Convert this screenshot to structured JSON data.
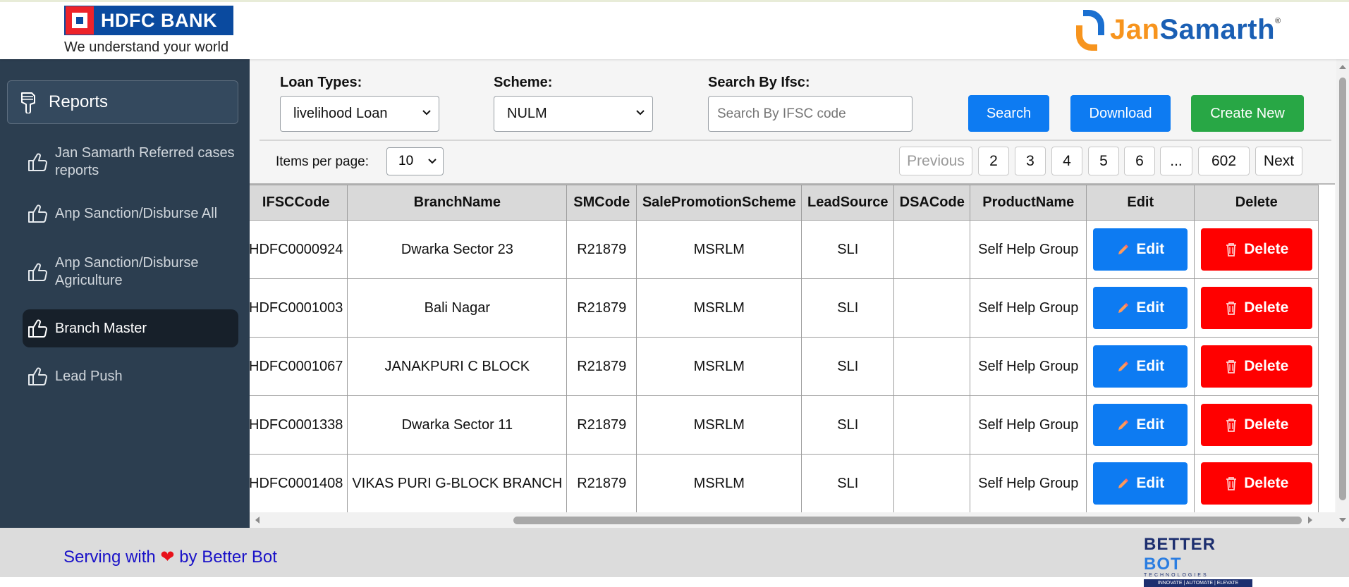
{
  "header": {
    "hdfc_name": "HDFC BANK",
    "hdfc_tagline": "We understand your world",
    "js_part1": "Jan",
    "js_part2": "Samarth",
    "js_reg": "®"
  },
  "sidebar": {
    "reports_label": "Reports",
    "items": [
      {
        "label": "Jan Samarth Referred cases reports"
      },
      {
        "label": "Anp Sanction/Disburse All"
      },
      {
        "label": "Anp Sanction/Disburse Agriculture"
      },
      {
        "label": "Branch Master"
      },
      {
        "label": "Lead Push"
      }
    ]
  },
  "filters": {
    "loan_types_label": "Loan Types:",
    "loan_types_value": "livelihood Loan",
    "scheme_label": "Scheme:",
    "scheme_value": "NULM",
    "search_label": "Search By Ifsc:",
    "search_placeholder": "Search By IFSC code",
    "search_button": "Search",
    "download_button": "Download",
    "create_button": "Create New"
  },
  "pagination": {
    "items_per_page_label": "Items per page:",
    "items_per_page_value": "10",
    "previous": "Previous",
    "pages": [
      "2",
      "3",
      "4",
      "5",
      "6",
      "...",
      "602"
    ],
    "next": "Next"
  },
  "table": {
    "columns": [
      "IFSCCode",
      "BranchName",
      "SMCode",
      "SalePromotionScheme",
      "LeadSource",
      "DSACode",
      "ProductName",
      "Edit",
      "Delete"
    ],
    "edit_label": "Edit",
    "delete_label": "Delete",
    "rows": [
      {
        "ifsc": "HDFC0000924",
        "branch": "Dwarka Sector 23",
        "sm": "R21879",
        "scheme": "MSRLM",
        "lead": "SLI",
        "dsa": "",
        "product": "Self Help Group"
      },
      {
        "ifsc": "HDFC0001003",
        "branch": "Bali Nagar",
        "sm": "R21879",
        "scheme": "MSRLM",
        "lead": "SLI",
        "dsa": "",
        "product": "Self Help Group"
      },
      {
        "ifsc": "HDFC0001067",
        "branch": "JANAKPURI C BLOCK",
        "sm": "R21879",
        "scheme": "MSRLM",
        "lead": "SLI",
        "dsa": "",
        "product": "Self Help Group"
      },
      {
        "ifsc": "HDFC0001338",
        "branch": "Dwarka Sector 11",
        "sm": "R21879",
        "scheme": "MSRLM",
        "lead": "SLI",
        "dsa": "",
        "product": "Self Help Group"
      },
      {
        "ifsc": "HDFC0001408",
        "branch": "VIKAS PURI G-BLOCK BRANCH",
        "sm": "R21879",
        "scheme": "MSRLM",
        "lead": "SLI",
        "dsa": "",
        "product": "Self Help Group"
      }
    ]
  },
  "footer": {
    "text_before": "Serving with",
    "heart": "❤",
    "text_after": "by Better Bot",
    "bb_title_1": "BETTER",
    "bb_title_2": "BOT",
    "bb_sub": "TECHNOLOGIES",
    "bb_strip": "INNOVATE | AUTOMATE | ELEVATE"
  },
  "colors": {
    "sidebar_bg": "#2c3e50",
    "primary_blue": "#0d7bf2",
    "success_green": "#28a745",
    "danger_red": "#ff0000",
    "footer_text": "#1a12c8"
  }
}
